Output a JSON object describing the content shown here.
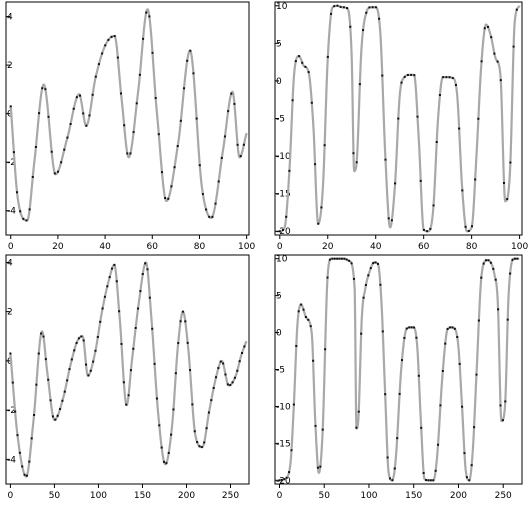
{
  "chart_data": [
    {
      "type": "line",
      "title": "",
      "xlabel": "",
      "ylabel": "",
      "xlim": [
        -2,
        101
      ],
      "ylim": [
        -5,
        4.6
      ],
      "xticks": [
        "0",
        "20",
        "40",
        "60",
        "80",
        "100"
      ],
      "yticks": [
        "-4",
        "-2",
        "0",
        "2",
        "4"
      ],
      "grid": false,
      "series": [
        {
          "x": [
            0,
            3,
            7,
            10,
            14,
            19,
            24,
            29,
            32,
            36,
            40,
            44,
            47,
            50,
            54,
            58,
            62,
            66,
            71,
            76,
            81,
            85,
            90,
            94,
            97,
            100
          ],
          "y": [
            0.3,
            -3.5,
            -4.4,
            -2.0,
            1.2,
            -2.5,
            -1.0,
            0.8,
            -0.5,
            1.5,
            2.8,
            3.2,
            0.6,
            -1.8,
            0.9,
            4.3,
            0.0,
            -3.6,
            -1.2,
            2.6,
            -3.0,
            -4.3,
            -1.5,
            0.9,
            -1.8,
            -0.8
          ]
        }
      ]
    },
    {
      "type": "line",
      "title": "",
      "xlabel": "",
      "ylabel": "",
      "xlim": [
        -2,
        101
      ],
      "ylim": [
        -20.5,
        10.5
      ],
      "xticks": [
        "0",
        "20",
        "40",
        "60",
        "80",
        "100"
      ],
      "yticks": [
        "-20",
        "-15",
        "-10",
        "-5",
        "0",
        "5",
        "10"
      ],
      "grid": false,
      "series": [
        {
          "x": [
            0,
            2,
            4,
            6,
            8,
            10,
            12,
            14,
            16,
            18,
            20,
            22,
            24,
            26,
            28,
            30,
            31,
            32,
            34,
            36,
            38,
            40,
            42,
            44,
            46,
            48,
            50,
            52,
            54,
            56,
            58,
            60,
            62,
            64,
            66,
            68,
            70,
            72,
            74,
            76,
            78,
            80,
            82,
            84,
            86,
            88,
            90,
            92,
            94,
            96,
            98,
            100
          ],
          "y": [
            -20,
            -19.5,
            -12,
            1,
            3.3,
            2,
            1.2,
            -6,
            -19,
            -14,
            3,
            9.8,
            10,
            9.8,
            9.7,
            3,
            -12,
            -11,
            4,
            9,
            9.8,
            9.8,
            6,
            -10,
            -19.5,
            -14,
            -2,
            0.5,
            0.8,
            0.8,
            -8,
            -19.8,
            -20,
            -17,
            -5,
            0.5,
            0.5,
            0.4,
            -2,
            -14,
            -20,
            -19.5,
            -10,
            2,
            7.5,
            6,
            3,
            0.8,
            -16,
            -12,
            8,
            10
          ]
        }
      ]
    },
    {
      "type": "line",
      "title": "",
      "xlabel": "",
      "ylabel": "",
      "xlim": [
        -5,
        271
      ],
      "ylim": [
        -5,
        4.3
      ],
      "xticks": [
        "0",
        "50",
        "100",
        "150",
        "200",
        "250"
      ],
      "yticks": [
        "-4",
        "-2",
        "0",
        "2",
        "4"
      ],
      "grid": false,
      "series": [
        {
          "x": [
            0,
            8,
            18,
            26,
            36,
            42,
            50,
            60,
            68,
            76,
            82,
            88,
            96,
            104,
            112,
            118,
            124,
            132,
            138,
            146,
            154,
            160,
            168,
            176,
            184,
            190,
            196,
            202,
            210,
            218,
            226,
            234,
            240,
            248,
            256,
            262,
            268
          ],
          "y": [
            0.3,
            -3.0,
            -4.7,
            -2.5,
            1.2,
            -0.5,
            -2.4,
            -1.5,
            -0.2,
            0.8,
            1.0,
            -0.6,
            0.3,
            2.0,
            3.3,
            3.9,
            1.8,
            -1.8,
            0.0,
            2.4,
            4.0,
            1.8,
            -2.2,
            -4.2,
            -2.5,
            0.5,
            2.0,
            0.5,
            -3.0,
            -3.5,
            -2.0,
            -0.6,
            0.0,
            -1.0,
            -0.6,
            0.2,
            0.8
          ]
        }
      ]
    },
    {
      "type": "line",
      "title": "",
      "xlabel": "",
      "ylabel": "",
      "xlim": [
        -5,
        271
      ],
      "ylim": [
        -20.5,
        10.5
      ],
      "xticks": [
        "0",
        "50",
        "100",
        "150",
        "200",
        "250"
      ],
      "yticks": [
        "-20",
        "-15",
        "-10",
        "-5",
        "0",
        "5",
        "10"
      ],
      "grid": false,
      "series": [
        {
          "x": [
            0,
            6,
            12,
            16,
            20,
            24,
            30,
            36,
            40,
            44,
            48,
            54,
            58,
            62,
            66,
            72,
            78,
            84,
            86,
            88,
            92,
            96,
            100,
            106,
            110,
            114,
            118,
            122,
            126,
            130,
            136,
            142,
            146,
            150,
            154,
            158,
            162,
            166,
            172,
            176,
            182,
            188,
            192,
            196,
            200,
            204,
            208,
            212,
            216,
            220,
            226,
            232,
            236,
            240,
            244,
            248,
            252,
            256,
            262,
            268
          ],
          "y": [
            -20,
            -19.8,
            -18,
            -10,
            1,
            3.8,
            2,
            0,
            -12,
            -19,
            -14,
            8,
            10,
            10,
            10,
            10,
            9.7,
            6,
            -13,
            -12,
            2,
            6,
            8,
            9.5,
            9.3,
            4,
            -8,
            -19,
            -20,
            -17,
            -5,
            0.5,
            0.7,
            0.7,
            -2,
            -12,
            -19.8,
            -20,
            -20,
            -17,
            -6,
            0.5,
            0.7,
            0.5,
            -2,
            -10,
            -18.5,
            -20,
            -16,
            -6,
            8,
            9.8,
            9.5,
            8,
            4,
            -12,
            -10,
            5,
            10,
            10
          ]
        }
      ]
    }
  ]
}
